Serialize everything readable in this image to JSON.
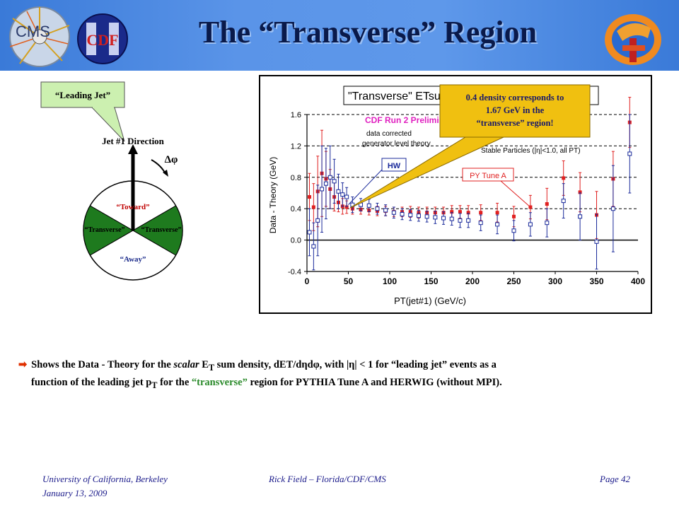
{
  "header": {
    "title": "The “Transverse” Region",
    "logo_left_text": "CMS",
    "logo_cdf_text": "CDF",
    "colors": {
      "banner": "#4a86e0",
      "title": "#0a1a4a"
    }
  },
  "diagram": {
    "leading_jet_label": "“Leading Jet”",
    "jet_direction_label": "Jet #1 Direction",
    "delta_phi_label": "Δφ",
    "toward_label": "“Toward”",
    "transverse_left_label": "“Transverse”",
    "transverse_right_label": "“Transverse”",
    "away_label": "“Away”",
    "colors": {
      "transverse": "#1e7a1e",
      "toward": "#c00000"
    }
  },
  "callout": {
    "line1": "0.4 density corresponds to",
    "line2": "1.67 GeV in the",
    "line3": "“transverse” region!",
    "color": "#f0c010"
  },
  "chart_data": {
    "type": "scatter",
    "title": "\"Transverse\" ETsum Density: dET/dηdφ",
    "preliminary_label": "CDF Run 2 Preliminary",
    "notes": [
      "data corrected",
      "generator level theory"
    ],
    "particles_label": "Stable Particles (|η|<1.0, all PT)",
    "xlabel": "PT(jet#1)  (GeV/c)",
    "ylabel": "Data - Theory (GeV)",
    "xlim": [
      0,
      400
    ],
    "ylim": [
      -0.4,
      1.6
    ],
    "xticks": [
      "0",
      "50",
      "100",
      "150",
      "200",
      "250",
      "300",
      "350",
      "400"
    ],
    "yticks": [
      "-0.4",
      "0.0",
      "0.4",
      "0.8",
      "1.2",
      "1.6"
    ],
    "grid_y": [
      0.4,
      0.8,
      1.2,
      1.6
    ],
    "series": [
      {
        "name": "PY Tune A",
        "color": "#e02020",
        "marker": "filled-square",
        "points": [
          [
            3,
            0.55,
            0.3
          ],
          [
            8,
            0.42,
            0.3
          ],
          [
            13,
            0.62,
            0.45
          ],
          [
            18,
            0.85,
            0.55
          ],
          [
            23,
            0.78,
            0.35
          ],
          [
            28,
            0.65,
            0.25
          ],
          [
            33,
            0.55,
            0.18
          ],
          [
            38,
            0.48,
            0.12
          ],
          [
            43,
            0.43,
            0.1
          ],
          [
            48,
            0.42,
            0.08
          ],
          [
            55,
            0.4,
            0.07
          ],
          [
            65,
            0.39,
            0.06
          ],
          [
            75,
            0.38,
            0.06
          ],
          [
            85,
            0.37,
            0.06
          ],
          [
            95,
            0.37,
            0.06
          ],
          [
            105,
            0.36,
            0.06
          ],
          [
            115,
            0.36,
            0.06
          ],
          [
            125,
            0.36,
            0.07
          ],
          [
            135,
            0.35,
            0.07
          ],
          [
            145,
            0.35,
            0.07
          ],
          [
            155,
            0.35,
            0.07
          ],
          [
            165,
            0.35,
            0.07
          ],
          [
            175,
            0.36,
            0.08
          ],
          [
            185,
            0.36,
            0.08
          ],
          [
            195,
            0.35,
            0.09
          ],
          [
            210,
            0.35,
            0.1
          ],
          [
            230,
            0.35,
            0.12
          ],
          [
            250,
            0.3,
            0.13
          ],
          [
            270,
            0.42,
            0.15
          ],
          [
            290,
            0.46,
            0.2
          ],
          [
            310,
            0.79,
            0.22
          ],
          [
            330,
            0.61,
            0.25
          ],
          [
            350,
            0.32,
            0.3
          ],
          [
            370,
            0.78,
            0.35
          ],
          [
            390,
            1.5,
            0.32
          ]
        ]
      },
      {
        "name": "HW",
        "color": "#1a2a9a",
        "marker": "open-square",
        "points": [
          [
            3,
            0.1,
            0.3
          ],
          [
            8,
            -0.08,
            0.3
          ],
          [
            13,
            0.25,
            0.45
          ],
          [
            18,
            0.65,
            0.55
          ],
          [
            23,
            0.72,
            0.45
          ],
          [
            28,
            0.8,
            0.4
          ],
          [
            33,
            0.75,
            0.28
          ],
          [
            38,
            0.62,
            0.22
          ],
          [
            43,
            0.58,
            0.15
          ],
          [
            48,
            0.55,
            0.12
          ],
          [
            55,
            0.45,
            0.1
          ],
          [
            65,
            0.45,
            0.08
          ],
          [
            75,
            0.44,
            0.08
          ],
          [
            85,
            0.4,
            0.07
          ],
          [
            95,
            0.38,
            0.07
          ],
          [
            105,
            0.35,
            0.07
          ],
          [
            115,
            0.33,
            0.07
          ],
          [
            125,
            0.32,
            0.07
          ],
          [
            135,
            0.31,
            0.07
          ],
          [
            145,
            0.3,
            0.07
          ],
          [
            155,
            0.29,
            0.08
          ],
          [
            165,
            0.28,
            0.08
          ],
          [
            175,
            0.27,
            0.08
          ],
          [
            185,
            0.25,
            0.09
          ],
          [
            195,
            0.25,
            0.09
          ],
          [
            210,
            0.22,
            0.1
          ],
          [
            230,
            0.2,
            0.12
          ],
          [
            250,
            0.12,
            0.13
          ],
          [
            270,
            0.2,
            0.15
          ],
          [
            290,
            0.22,
            0.18
          ],
          [
            310,
            0.5,
            0.22
          ],
          [
            330,
            0.3,
            0.3
          ],
          [
            350,
            -0.02,
            0.35
          ],
          [
            370,
            0.4,
            0.55
          ],
          [
            390,
            1.1,
            0.5
          ]
        ]
      }
    ],
    "labels": [
      {
        "text": "HW",
        "color": "#1a2a9a",
        "x": 0,
        "y": 0
      },
      {
        "text": "PY Tune A",
        "color": "#e02020",
        "x": 0,
        "y": 0
      }
    ]
  },
  "bottom": {
    "p1": "Shows the Data - Theory for the ",
    "scalar": "scalar",
    "et": " E",
    "sub_t": "T",
    "p2": " sum density, dET/dηdφ, with |η| < 1 for “leading jet” events as a",
    "p3": "function of the leading jet p",
    "sub_t2": "T",
    "p4": " for the ",
    "transverse": "“transverse”",
    "p5": " region for PYTHIA Tune A and HERWIG (without MPI)."
  },
  "footer": {
    "left_line1": "University  of California,  Berkeley",
    "left_line2": "January 13, 2009",
    "center": "Rick Field – Florida/CDF/CMS",
    "right": "Page 42"
  }
}
